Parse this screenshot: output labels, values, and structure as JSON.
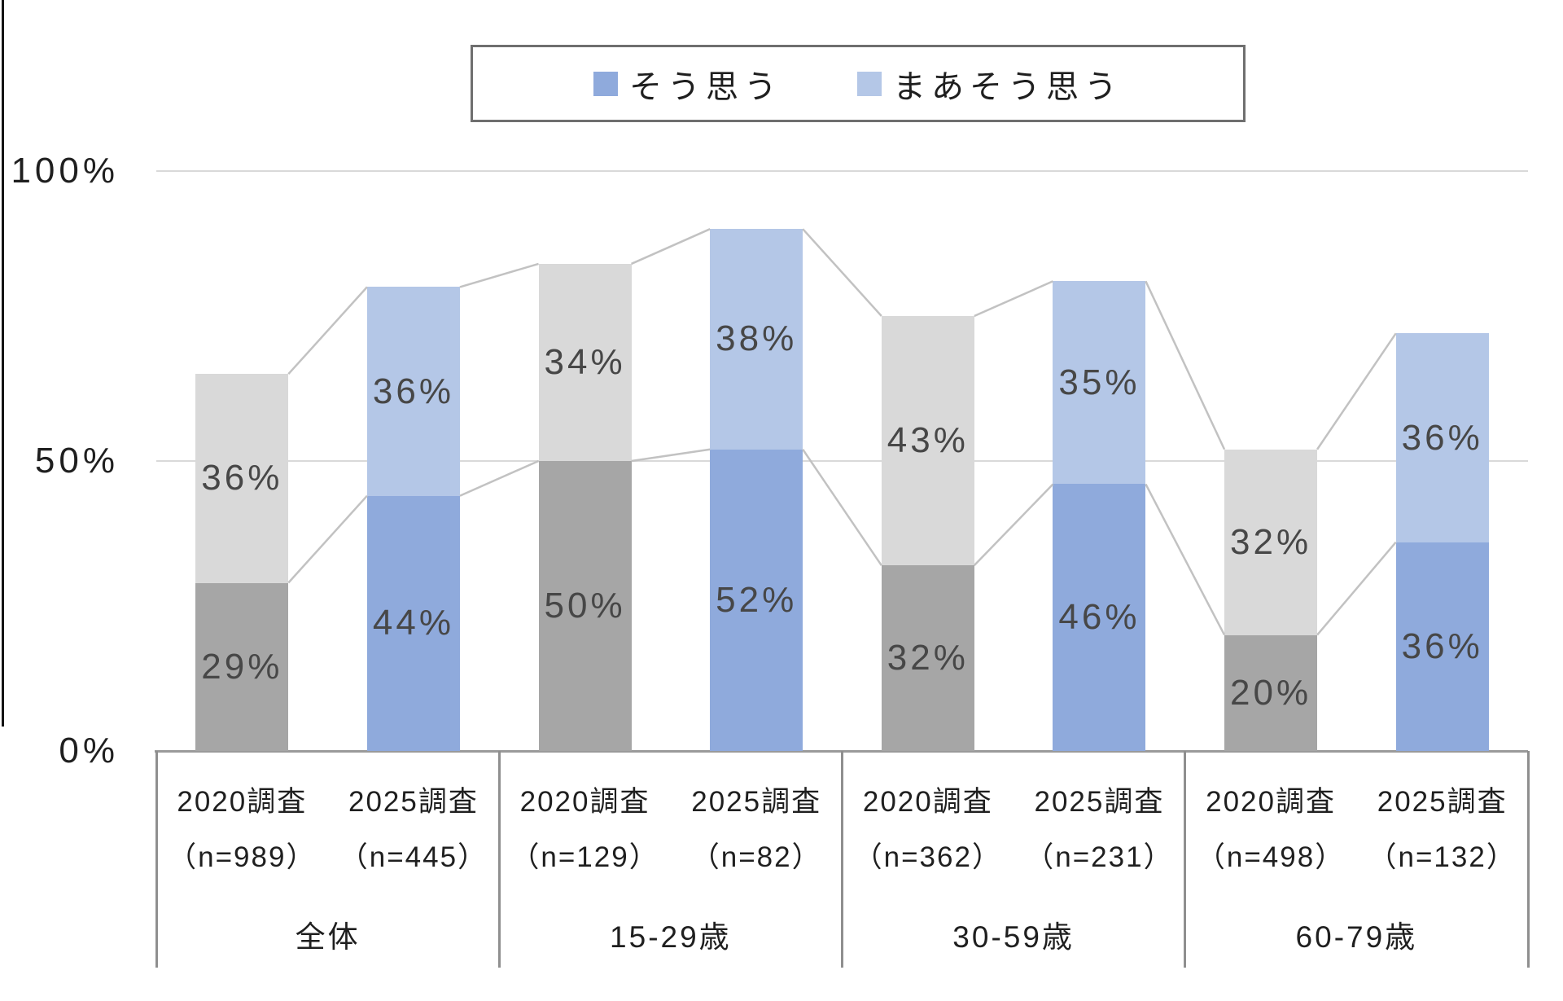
{
  "chart_data": {
    "type": "bar",
    "stacked": true,
    "title": "",
    "value_suffix": "%",
    "legend": [
      {
        "key": "agree",
        "label": "そう思う",
        "color": "#8faadc"
      },
      {
        "key": "somewhat",
        "label": "まあそう思う",
        "color": "#b4c7e7"
      }
    ],
    "series_colors": {
      "2020調査": {
        "agree": "#a6a6a6",
        "somewhat": "#d9d9d9"
      },
      "2025調査": {
        "agree": "#8faadc",
        "somewhat": "#b4c7e7"
      }
    },
    "y_axis": {
      "ticks": [
        {
          "label": "100%",
          "value": 100
        },
        {
          "label": "50%",
          "value": 50
        },
        {
          "label": "0%",
          "value": 0
        }
      ],
      "ylim": [
        0,
        100
      ],
      "grid": true
    },
    "legend_position": "top",
    "groups": [
      {
        "name": "全体",
        "bars": [
          {
            "survey": "2020調査",
            "n_label": "（n=989）",
            "agree": 29,
            "somewhat": 36
          },
          {
            "survey": "2025調査",
            "n_label": "（n=445）",
            "agree": 44,
            "somewhat": 36
          }
        ]
      },
      {
        "name": "15-29歳",
        "bars": [
          {
            "survey": "2020調査",
            "n_label": "（n=129）",
            "agree": 50,
            "somewhat": 34
          },
          {
            "survey": "2025調査",
            "n_label": "（n=82）",
            "agree": 52,
            "somewhat": 38
          }
        ]
      },
      {
        "name": "30-59歳",
        "bars": [
          {
            "survey": "2020調査",
            "n_label": "（n=362）",
            "agree": 32,
            "somewhat": 43
          },
          {
            "survey": "2025調査",
            "n_label": "（n=231）",
            "agree": 46,
            "somewhat": 35
          }
        ]
      },
      {
        "name": "60-79歳",
        "bars": [
          {
            "survey": "2020調査",
            "n_label": "（n=498）",
            "agree": 20,
            "somewhat": 32
          },
          {
            "survey": "2025調査",
            "n_label": "（n=132）",
            "agree": 36,
            "somewhat": 36
          }
        ]
      }
    ],
    "colors": {
      "gridline": "#d9d9d9",
      "axis_line": "#9a9a9a",
      "category_divider": "#8f8f8f",
      "connector_line": "#c2c2c2",
      "value_text": "#474747",
      "axis_text": "#1f1f1f",
      "legend_border": "#6f6f6f",
      "document_border": "#141414"
    }
  }
}
